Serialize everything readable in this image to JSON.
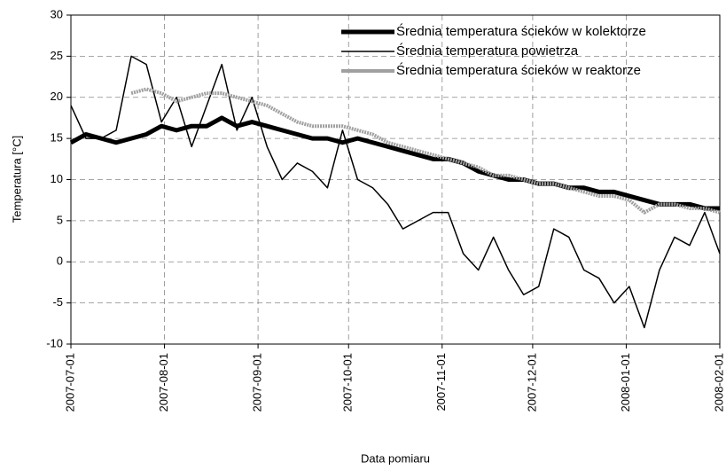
{
  "chart_data": {
    "type": "line",
    "x_label": "Data pomiaru",
    "y_label": "Temperatura [°C]",
    "x": [
      "2007-07-01",
      "2007-07-06",
      "2007-07-11",
      "2007-07-16",
      "2007-07-21",
      "2007-07-26",
      "2007-07-31",
      "2007-08-05",
      "2007-08-10",
      "2007-08-15",
      "2007-08-20",
      "2007-08-25",
      "2007-08-30",
      "2007-09-04",
      "2007-09-09",
      "2007-09-14",
      "2007-09-19",
      "2007-09-24",
      "2007-09-29",
      "2007-10-04",
      "2007-10-09",
      "2007-10-14",
      "2007-10-19",
      "2007-10-24",
      "2007-10-29",
      "2007-11-03",
      "2007-11-08",
      "2007-11-13",
      "2007-11-18",
      "2007-11-23",
      "2007-11-28",
      "2007-12-03",
      "2007-12-08",
      "2007-12-13",
      "2007-12-18",
      "2007-12-23",
      "2007-12-28",
      "2008-01-02",
      "2008-01-07",
      "2008-01-12",
      "2008-01-17",
      "2008-01-22",
      "2008-01-27",
      "2008-02-01"
    ],
    "series": [
      {
        "name": "Średnia temperatura ścieków w kolektorze",
        "color": "#000000",
        "width": 5,
        "values": [
          14.5,
          15.5,
          15,
          14.5,
          15,
          15.5,
          16.5,
          16,
          16.5,
          16.5,
          17.5,
          16.5,
          17,
          16.5,
          16,
          15.5,
          15,
          15,
          14.5,
          15,
          14.5,
          14,
          13.5,
          13,
          12.5,
          12.5,
          12,
          11,
          10.5,
          10,
          10,
          9.5,
          9.5,
          9,
          9,
          8.5,
          8.5,
          8,
          7.5,
          7,
          7,
          7,
          6.5,
          6.5
        ]
      },
      {
        "name": "Średnia temperatura powietrza",
        "color": "#000000",
        "width": 1.5,
        "values": [
          19,
          15,
          15,
          16,
          25,
          24,
          17,
          20,
          14,
          19,
          24,
          16,
          20,
          14,
          10,
          12,
          11,
          9,
          16,
          10,
          9,
          7,
          4,
          5,
          6,
          6,
          1,
          -1,
          3,
          -1,
          -4,
          -3,
          4,
          3,
          -1,
          -2,
          -5,
          -3,
          -8,
          -1,
          3,
          2,
          6,
          1
        ]
      },
      {
        "name": "Średnia temperatura ścieków w reaktorze",
        "color": "#a0a0a0",
        "width": 4,
        "values": [
          null,
          null,
          null,
          null,
          20.5,
          21,
          20.5,
          19.5,
          20,
          20.5,
          20.5,
          20,
          19.5,
          19,
          18,
          17,
          16.5,
          16.5,
          16.5,
          16,
          15.5,
          14.5,
          14,
          13.5,
          13,
          12.5,
          12,
          11.5,
          10.5,
          10.5,
          10,
          9.5,
          9.5,
          9,
          8.5,
          8,
          8,
          7.5,
          6,
          7,
          7,
          6.5,
          6.5,
          6
        ]
      }
    ],
    "xlim": [
      "2007-07-01",
      "2008-02-01"
    ],
    "xticks": [
      "2007-07-01",
      "2007-08-01",
      "2007-09-01",
      "2007-10-01",
      "2007-11-01",
      "2007-12-01",
      "2008-01-01",
      "2008-02-01"
    ],
    "ylim": [
      -10,
      30
    ],
    "yticks": [
      -10,
      -5,
      0,
      5,
      10,
      15,
      20,
      25,
      30
    ],
    "grid": true,
    "legend": "top-right"
  }
}
